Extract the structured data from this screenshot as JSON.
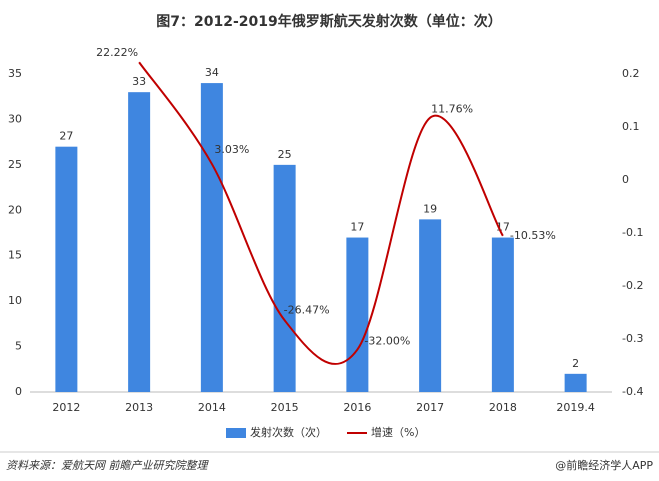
{
  "chart_data": {
    "type": "bar",
    "title": "图7：2012-2019年俄罗斯航天发射次数（单位：次）",
    "categories": [
      "2012",
      "2013",
      "2014",
      "2015",
      "2016",
      "2017",
      "2018",
      "2019.4"
    ],
    "series": [
      {
        "name": "发射次数（次）",
        "type": "bar",
        "color": "#3f86e0",
        "values": [
          27,
          33,
          34,
          25,
          17,
          19,
          17,
          2
        ]
      },
      {
        "name": "增速（%）",
        "type": "line",
        "axis": "y2",
        "color": "#c00000",
        "values": [
          null,
          0.2222,
          0.0303,
          -0.2647,
          -0.32,
          0.1176,
          -0.1053,
          null
        ],
        "value_labels": [
          null,
          "22.22%",
          "3.03%",
          "-26.47%",
          "-32.00%",
          "11.76%",
          "-10.53%",
          null
        ]
      }
    ],
    "ylim": [
      0,
      35
    ],
    "yticks": [
      0,
      5,
      10,
      15,
      20,
      25,
      30,
      35
    ],
    "y2lim": [
      -0.4,
      0.2
    ],
    "y2ticks": [
      -0.4,
      -0.3,
      -0.2,
      -0.1,
      0,
      0.1,
      0.2
    ],
    "legend": "bottom",
    "source": "资料来源：爱航天网 前瞻产业研究院整理",
    "brand": "@前瞻经济学人APP"
  }
}
